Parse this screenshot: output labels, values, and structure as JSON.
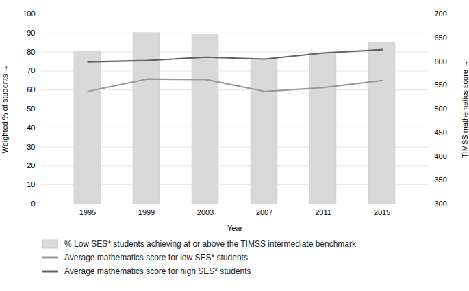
{
  "chart_data": {
    "type": "bar",
    "xlabel": "Year",
    "ylabel": "Weighted % of students",
    "y2label": "TIMSS mathematics score",
    "categories": [
      1995,
      1999,
      2003,
      2007,
      2011,
      2015
    ],
    "series": [
      {
        "name": "% Low SES* students achieving at or above the TIMSS intermediate benchmark",
        "type": "bar",
        "color": "#d9d9d9",
        "values": [
          80,
          90,
          89,
          76,
          79,
          85
        ]
      },
      {
        "name": "Average mathematics score for low SES* students",
        "type": "line",
        "axis": "y2",
        "color": "#999999",
        "values": [
          537,
          563,
          562,
          537,
          545,
          560
        ]
      },
      {
        "name": "Average mathematics score for high SES* students",
        "type": "line",
        "axis": "y2",
        "color": "#636363",
        "values": [
          599,
          602,
          609,
          605,
          618,
          625
        ]
      }
    ],
    "ylim": [
      0,
      100
    ],
    "yticks": [
      0,
      10,
      20,
      30,
      40,
      50,
      60,
      70,
      80,
      90,
      100
    ],
    "y2lim": [
      300,
      700
    ],
    "y2ticks": [
      300,
      350,
      400,
      450,
      500,
      550,
      600,
      650,
      700
    ],
    "grid": true,
    "legend": "bottom"
  }
}
